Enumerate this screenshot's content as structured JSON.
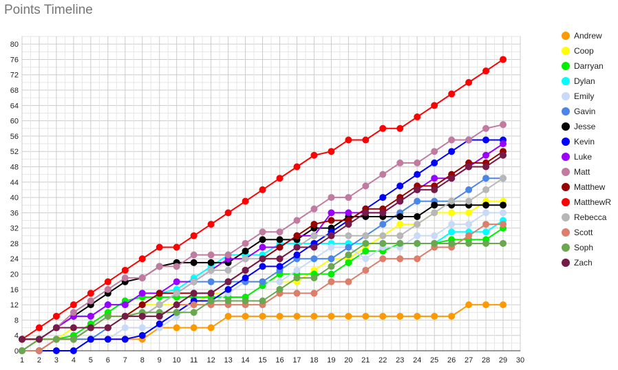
{
  "chart_data": {
    "type": "line",
    "title": "Points Timeline",
    "xlabel": "",
    "ylabel": "",
    "xlim": [
      1,
      30
    ],
    "ylim": [
      0,
      82
    ],
    "x_ticks": [
      1,
      2,
      3,
      4,
      5,
      6,
      7,
      8,
      9,
      10,
      11,
      12,
      13,
      14,
      15,
      16,
      17,
      18,
      19,
      20,
      21,
      22,
      23,
      24,
      25,
      26,
      27,
      28,
      29,
      30
    ],
    "y_ticks": [
      0,
      4,
      8,
      12,
      16,
      20,
      24,
      28,
      32,
      36,
      40,
      44,
      48,
      52,
      56,
      60,
      64,
      68,
      72,
      76,
      80
    ],
    "grid": true,
    "legend_position": "right",
    "x": [
      1,
      2,
      3,
      4,
      5,
      6,
      7,
      8,
      9,
      10,
      11,
      12,
      13,
      14,
      15,
      16,
      17,
      18,
      19,
      20,
      21,
      22,
      23,
      24,
      25,
      26,
      27,
      28,
      29
    ],
    "series": [
      {
        "name": "Andrew",
        "color": "#ff9900",
        "values": [
          0,
          0,
          3,
          3,
          3,
          3,
          3,
          3,
          6,
          6,
          6,
          6,
          9,
          9,
          9,
          9,
          9,
          9,
          9,
          9,
          9,
          9,
          9,
          9,
          9,
          9,
          12,
          12,
          12
        ]
      },
      {
        "name": "Coop",
        "color": "#ffff00",
        "values": [
          0,
          3,
          3,
          6,
          6,
          6,
          9,
          12,
          12,
          12,
          12,
          15,
          15,
          18,
          18,
          18,
          18,
          21,
          24,
          24,
          27,
          30,
          33,
          33,
          36,
          36,
          36,
          39,
          39
        ]
      },
      {
        "name": "Darryan",
        "color": "#00ee00",
        "values": [
          0,
          3,
          3,
          4,
          7,
          10,
          13,
          14,
          14,
          14,
          14,
          14,
          14,
          14,
          17,
          20,
          20,
          20,
          20,
          23,
          26,
          26,
          28,
          28,
          28,
          29,
          29,
          29,
          32
        ]
      },
      {
        "name": "Dylan",
        "color": "#00ffff",
        "values": [
          0,
          3,
          6,
          9,
          9,
          12,
          12,
          15,
          15,
          16,
          19,
          22,
          25,
          25,
          25,
          28,
          28,
          28,
          28,
          28,
          28,
          28,
          28,
          28,
          28,
          31,
          31,
          31,
          34
        ]
      },
      {
        "name": "Emily",
        "color": "#c9daf8",
        "values": [
          0,
          0,
          0,
          0,
          3,
          3,
          6,
          6,
          6,
          9,
          12,
          12,
          15,
          18,
          18,
          18,
          21,
          24,
          27,
          27,
          24,
          27,
          27,
          30,
          30,
          33,
          33,
          36,
          36
        ]
      },
      {
        "name": "Gavin",
        "color": "#4a86e8",
        "values": [
          0,
          0,
          3,
          3,
          3,
          6,
          9,
          9,
          12,
          15,
          18,
          18,
          18,
          18,
          18,
          21,
          24,
          24,
          24,
          27,
          30,
          33,
          36,
          39,
          39,
          39,
          42,
          45,
          45
        ]
      },
      {
        "name": "Jesse",
        "color": "#000000",
        "values": [
          3,
          3,
          6,
          9,
          12,
          15,
          18,
          19,
          22,
          23,
          23,
          23,
          23,
          26,
          29,
          29,
          29,
          32,
          32,
          35,
          35,
          35,
          35,
          35,
          38,
          38,
          38,
          38,
          38
        ]
      },
      {
        "name": "Kevin",
        "color": "#0000ff",
        "values": [
          0,
          0,
          0,
          0,
          3,
          3,
          3,
          4,
          7,
          10,
          13,
          13,
          16,
          19,
          22,
          22,
          25,
          28,
          31,
          34,
          37,
          40,
          43,
          46,
          49,
          52,
          55,
          55,
          55
        ]
      },
      {
        "name": "Luke",
        "color": "#9900ff",
        "values": [
          0,
          3,
          6,
          9,
          9,
          12,
          12,
          15,
          15,
          18,
          18,
          21,
          24,
          24,
          27,
          27,
          30,
          30,
          36,
          36,
          36,
          36,
          39,
          42,
          45,
          45,
          48,
          51,
          54
        ]
      },
      {
        "name": "Matt",
        "color": "#c27ba0",
        "values": [
          0,
          3,
          6,
          10,
          13,
          16,
          19,
          19,
          22,
          22,
          25,
          25,
          25,
          28,
          31,
          31,
          34,
          37,
          40,
          40,
          43,
          46,
          49,
          49,
          52,
          55,
          55,
          58,
          59
        ]
      },
      {
        "name": "Matthew",
        "color": "#990000",
        "values": [
          3,
          3,
          3,
          3,
          6,
          6,
          9,
          12,
          15,
          15,
          15,
          15,
          18,
          21,
          24,
          27,
          30,
          33,
          34,
          34,
          37,
          37,
          40,
          43,
          43,
          46,
          49,
          49,
          52
        ]
      },
      {
        "name": "MatthewR",
        "color": "#ff0000",
        "values": [
          3,
          6,
          9,
          12,
          15,
          18,
          21,
          24,
          27,
          27,
          30,
          33,
          36,
          39,
          42,
          45,
          48,
          51,
          52,
          55,
          55,
          58,
          58,
          61,
          64,
          67,
          70,
          73,
          76
        ]
      },
      {
        "name": "Rebecca",
        "color": "#b7b7b7",
        "values": [
          0,
          3,
          3,
          3,
          6,
          6,
          9,
          9,
          12,
          15,
          18,
          21,
          21,
          24,
          24,
          24,
          27,
          30,
          30,
          30,
          30,
          30,
          30,
          33,
          36,
          39,
          39,
          42,
          45
        ]
      },
      {
        "name": "Scott",
        "color": "#dd7e6b",
        "values": [
          0,
          0,
          3,
          3,
          6,
          9,
          9,
          9,
          9,
          12,
          12,
          12,
          12,
          12,
          12,
          15,
          15,
          15,
          18,
          18,
          21,
          24,
          24,
          24,
          27,
          27,
          30,
          33,
          33
        ]
      },
      {
        "name": "Soph",
        "color": "#6aa84f",
        "values": [
          0,
          3,
          3,
          3,
          6,
          9,
          9,
          10,
          10,
          10,
          10,
          13,
          13,
          13,
          13,
          16,
          19,
          19,
          22,
          25,
          28,
          28,
          28,
          28,
          28,
          28,
          28,
          28,
          28
        ]
      },
      {
        "name": "Zach",
        "color": "#741b47",
        "values": [
          3,
          3,
          6,
          6,
          6,
          6,
          9,
          9,
          9,
          12,
          15,
          15,
          18,
          21,
          24,
          24,
          27,
          27,
          30,
          33,
          36,
          36,
          39,
          42,
          42,
          45,
          48,
          48,
          51
        ]
      }
    ]
  }
}
